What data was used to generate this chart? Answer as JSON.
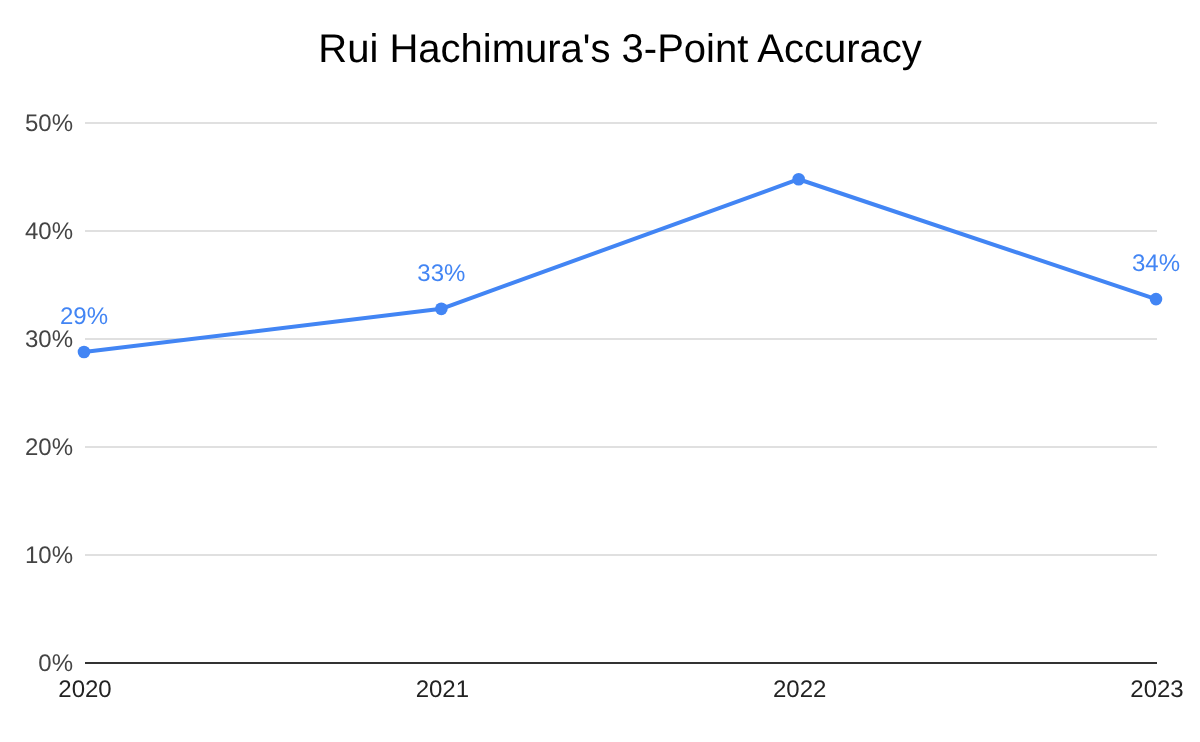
{
  "chart_data": {
    "type": "line",
    "title": "Rui Hachimura's 3-Point Accuracy",
    "categories": [
      "2020",
      "2021",
      "2022",
      "2023"
    ],
    "series": [
      {
        "color": "#4285f4",
        "values": [
          28.7,
          32.7,
          44.7,
          33.6
        ],
        "value_labels": [
          "29%",
          "33%",
          null,
          "34%"
        ]
      }
    ],
    "ylim": [
      0,
      50
    ],
    "yticks": [
      {
        "value": 0,
        "label": "0%"
      },
      {
        "value": 10,
        "label": "10%"
      },
      {
        "value": 20,
        "label": "20%"
      },
      {
        "value": 30,
        "label": "30%"
      },
      {
        "value": 40,
        "label": "40%"
      },
      {
        "value": 50,
        "label": "50%"
      }
    ],
    "grid": "y",
    "marker": "circle",
    "line_style": "solid"
  }
}
